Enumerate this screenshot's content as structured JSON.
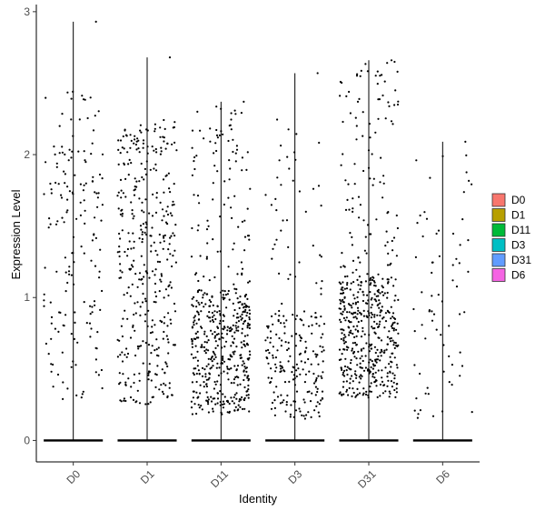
{
  "chart_data": {
    "type": "scatter",
    "subtype": "violin-jitter",
    "xlabel": "Identity",
    "ylabel": "Expression Level",
    "categories": [
      "D0",
      "D1",
      "D11",
      "D3",
      "D31",
      "D6"
    ],
    "ylim": [
      -0.15,
      3.05
    ],
    "yticks": [
      "0",
      "1",
      "2",
      "3"
    ],
    "ytick_values": [
      0,
      1,
      2,
      3
    ],
    "grid": false,
    "legend": {
      "position": "right",
      "entries": [
        {
          "label": "D0",
          "color": "#F8766D"
        },
        {
          "label": "D1",
          "color": "#B79F00"
        },
        {
          "label": "D11",
          "color": "#00BA38"
        },
        {
          "label": "D3",
          "color": "#00BFC4"
        },
        {
          "label": "D31",
          "color": "#619CFF"
        },
        {
          "label": "D6",
          "color": "#F564E3"
        }
      ]
    },
    "series": [
      {
        "category": "D0",
        "max": 2.93,
        "n_nonzero": 170,
        "lo": 0.27,
        "hi": 2.45,
        "mode": "uniform"
      },
      {
        "category": "D1",
        "max": 2.68,
        "n_nonzero": 380,
        "lo": 0.25,
        "hi": 2.25,
        "mode": "uniform"
      },
      {
        "category": "D11",
        "max": 2.37,
        "n_nonzero": 520,
        "lo": 0.18,
        "hi": 1.05,
        "mode": "dense-low",
        "sparse_hi": 2.35
      },
      {
        "category": "D3",
        "max": 2.57,
        "n_nonzero": 230,
        "lo": 0.15,
        "hi": 0.9,
        "mode": "dense-low",
        "sparse_hi": 2.25
      },
      {
        "category": "D31",
        "max": 2.66,
        "n_nonzero": 540,
        "lo": 0.3,
        "hi": 1.15,
        "mode": "dense-low",
        "sparse_hi": 2.65
      },
      {
        "category": "D6",
        "max": 2.09,
        "n_nonzero": 70,
        "lo": 0.15,
        "hi": 1.6,
        "mode": "uniform",
        "sparse_hi": 2.0
      }
    ]
  }
}
